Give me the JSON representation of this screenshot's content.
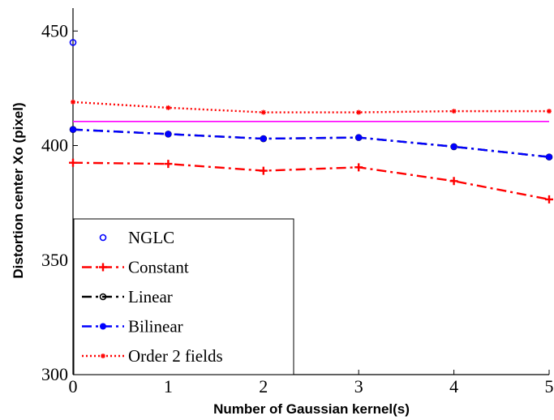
{
  "chart_data": {
    "type": "line",
    "xlabel": "Number of Gaussian kernel(s)",
    "ylabel": "Distortion center Xo (pixel)",
    "xlim": [
      0,
      5
    ],
    "ylim": [
      300,
      460
    ],
    "xticks": [
      "0",
      "1",
      "2",
      "3",
      "4",
      "5"
    ],
    "yticks": [
      "300",
      "350",
      "400",
      "450"
    ],
    "ytick_values": [
      300,
      350,
      400,
      450
    ],
    "grid": false,
    "legend_position": "bottom-left",
    "series": [
      {
        "name": "NGLC",
        "style": "marker-only",
        "marker": "circle",
        "color": "#0000ff",
        "x": [
          0
        ],
        "y": [
          445
        ]
      },
      {
        "name": "Constant",
        "style": "dash-dot",
        "marker": "plus",
        "color": "#ff0000",
        "x": [
          0,
          1,
          2,
          3,
          4,
          5
        ],
        "y": [
          392.5,
          392,
          389,
          390.5,
          384.5,
          376.5
        ]
      },
      {
        "name": "Linear",
        "style": "dash-dot",
        "marker": "circle",
        "color": "#000000",
        "x": [
          0,
          1,
          2,
          3,
          4,
          5
        ],
        "y": [
          407,
          405,
          403,
          403.5,
          399.5,
          395
        ]
      },
      {
        "name": "Bilinear",
        "style": "dash-dot",
        "marker": "dot",
        "color": "#0000ff",
        "x": [
          0,
          1,
          2,
          3,
          4,
          5
        ],
        "y": [
          407,
          405,
          403,
          403.5,
          399.5,
          395
        ]
      },
      {
        "name": "Order 2 fields",
        "style": "dotted",
        "marker": "star",
        "color": "#ff0000",
        "x": [
          0,
          1,
          2,
          3,
          4,
          5
        ],
        "y": [
          419,
          416.5,
          414.5,
          414.5,
          415,
          415
        ]
      },
      {
        "name": "",
        "style": "solid",
        "marker": "none",
        "color": "#ff00ff",
        "x": [
          0,
          5
        ],
        "y": [
          410.5,
          410.5
        ]
      }
    ]
  }
}
